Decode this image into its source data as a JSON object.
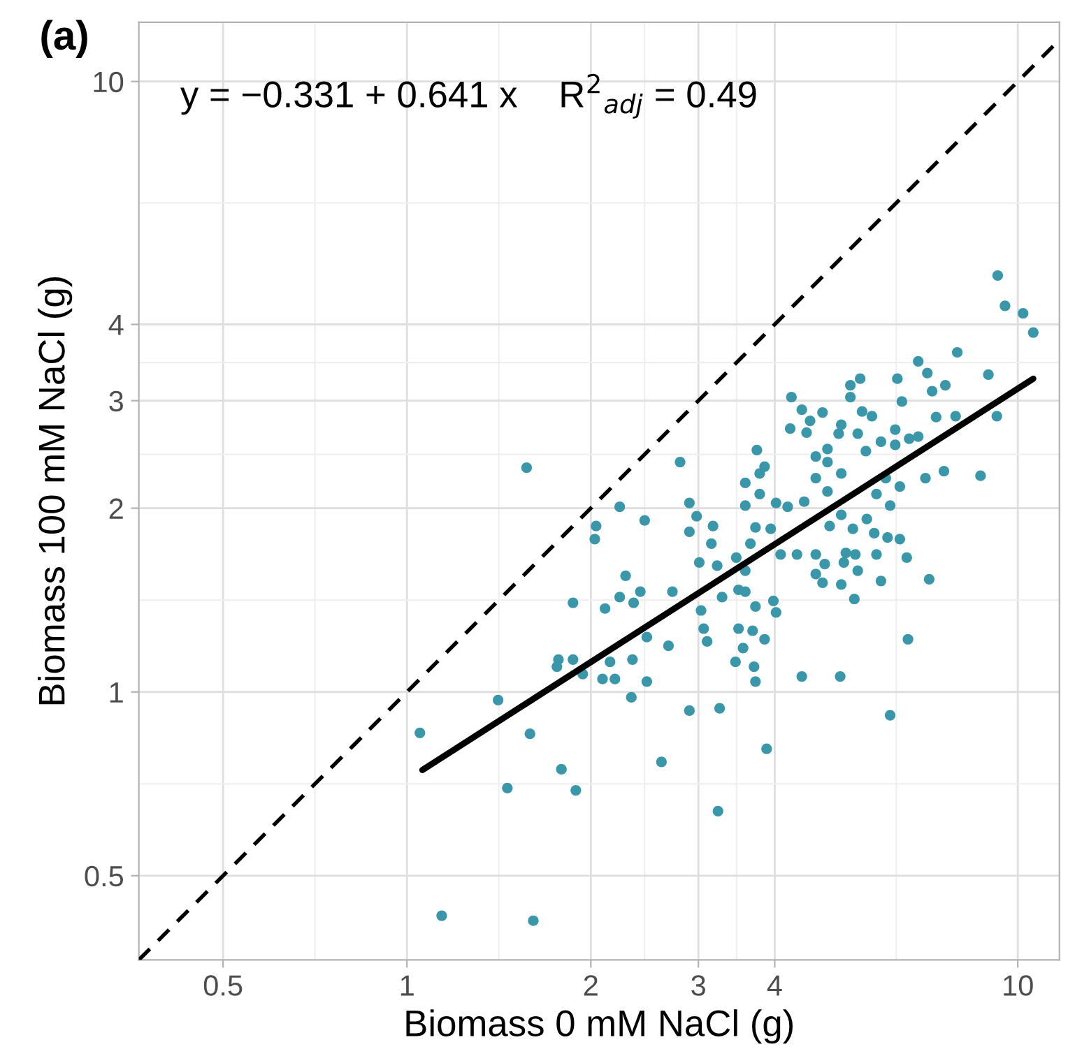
{
  "chart_data": {
    "type": "scatter",
    "title": "(a)",
    "xlabel": "Biomass 0 mM NaCl (g)",
    "ylabel": "Biomass 100 mM NaCl (g)",
    "log": "xy",
    "grid": true,
    "legend": false,
    "xlim": [
      0.364,
      11.7
    ],
    "ylim": [
      0.364,
      12.5
    ],
    "xticks": [
      0.5,
      {
        "value": 0.707,
        "label": null
      },
      1,
      {
        "value": 1.414,
        "label": null
      },
      2,
      {
        "value": 2.449,
        "label": null
      },
      3,
      {
        "value": 3.464,
        "label": null
      },
      4,
      {
        "value": 6.325,
        "label": null
      },
      10
    ],
    "yticks": [
      0.5,
      {
        "value": 0.707,
        "label": null
      },
      1,
      {
        "value": 1.414,
        "label": null
      },
      2,
      {
        "value": 2.449,
        "label": null
      },
      3,
      {
        "value": 3.464,
        "label": null
      },
      4,
      {
        "value": 6.325,
        "label": null
      },
      10
    ],
    "annotations": [
      "y = −0.331 + 0.641 x    R$^{2}$$_{adj}$ = 0.49"
    ],
    "series": [
      {
        "color": "#3a97a9",
        "marker": "circle",
        "x": [
          9.27,
          9.53,
          10.2,
          10.6,
          7.96,
          6.87,
          7.11,
          8.95,
          6.35,
          5.52,
          5.32,
          7.61,
          7.24,
          5.32,
          6.46,
          4.26,
          4.43,
          4.79,
          5.56,
          5.77,
          7.35,
          7.91,
          9.24,
          4.57,
          5.14,
          4.24,
          4.51,
          5.09,
          5.47,
          6.3,
          5.97,
          6.64,
          6.87,
          5.64,
          3.74,
          4.67,
          4.88,
          6.3,
          1.57,
          2.8,
          3.85,
          3.78,
          4.88,
          5.14,
          7.57,
          8.69,
          7.06,
          3.58,
          4.67,
          6.08,
          6.41,
          4.88,
          5.87,
          3.78,
          2.23,
          2.9,
          3.58,
          4.02,
          4.2,
          4.47,
          6.18,
          2.45,
          2.04,
          2.03,
          2.98,
          3.17,
          2.9,
          3.72,
          3.94,
          3.65,
          4.92,
          5.14,
          5.37,
          5.66,
          5.82,
          6.12,
          6.41,
          3.15,
          4.09,
          4.35,
          4.67,
          5.23,
          5.42,
          5.87,
          6.58,
          3.01,
          3.22,
          3.46,
          3.58,
          4.83,
          4.67,
          5.19,
          5.47,
          5.97,
          7.16,
          4.79,
          5.14,
          2.28,
          2.23,
          2.11,
          2.41,
          2.35,
          1.87,
          2.72,
          3.28,
          3.49,
          3.58,
          3.03,
          3.72,
          3.98,
          4.02,
          5.4,
          1.77,
          1.87,
          1.76,
          1.94,
          2.15,
          2.34,
          2.47,
          2.68,
          2.09,
          2.19,
          2.47,
          3.06,
          3.1,
          3.49,
          3.68,
          3.85,
          3.55,
          3.45,
          3.7,
          3.72,
          4.43,
          5.12,
          6.61,
          2.33,
          1.41,
          1.05,
          1.59,
          2.9,
          3.25,
          6.18,
          3.88,
          1.79,
          1.46,
          1.89,
          2.61,
          1.14,
          1.61,
          3.23
        ],
        "values": [
          4.81,
          4.29,
          4.17,
          3.88,
          3.6,
          3.48,
          3.33,
          3.31,
          3.26,
          3.26,
          3.18,
          3.18,
          3.11,
          3.04,
          2.99,
          3.04,
          2.9,
          2.87,
          2.88,
          2.83,
          2.82,
          2.83,
          2.83,
          2.78,
          2.74,
          2.7,
          2.66,
          2.65,
          2.65,
          2.69,
          2.57,
          2.6,
          2.62,
          2.48,
          2.49,
          2.43,
          2.5,
          2.54,
          2.33,
          2.38,
          2.34,
          2.28,
          2.38,
          2.28,
          2.3,
          2.26,
          2.24,
          2.2,
          2.24,
          2.24,
          2.17,
          2.13,
          2.11,
          2.11,
          2.01,
          2.04,
          2.02,
          2.04,
          2.01,
          2.05,
          2.02,
          1.91,
          1.87,
          1.78,
          1.94,
          1.87,
          1.83,
          1.86,
          1.85,
          1.75,
          1.87,
          1.95,
          1.85,
          1.92,
          1.82,
          1.79,
          1.78,
          1.75,
          1.68,
          1.68,
          1.68,
          1.69,
          1.68,
          1.68,
          1.66,
          1.63,
          1.61,
          1.66,
          1.58,
          1.62,
          1.56,
          1.63,
          1.58,
          1.52,
          1.53,
          1.51,
          1.5,
          1.55,
          1.43,
          1.37,
          1.46,
          1.4,
          1.4,
          1.46,
          1.43,
          1.47,
          1.46,
          1.36,
          1.38,
          1.41,
          1.35,
          1.42,
          1.13,
          1.13,
          1.1,
          1.07,
          1.12,
          1.13,
          1.23,
          1.19,
          1.05,
          1.05,
          1.04,
          1.27,
          1.21,
          1.27,
          1.26,
          1.22,
          1.18,
          1.12,
          1.1,
          1.04,
          1.06,
          1.06,
          1.22,
          0.98,
          0.97,
          0.857,
          0.854,
          0.932,
          0.94,
          0.916,
          0.807,
          0.747,
          0.696,
          0.69,
          0.768,
          0.43,
          0.422,
          0.638
        ]
      },
      {
        "type": "line",
        "color": "#000000",
        "line_style": "solid",
        "x": [
          1.06,
          10.6
        ],
        "values": [
          0.745,
          3.26
        ]
      },
      {
        "type": "line",
        "color": "#000000",
        "line_style": "dashed",
        "x": [
          0.364,
          11.7
        ],
        "values": [
          0.364,
          11.7
        ]
      }
    ]
  }
}
